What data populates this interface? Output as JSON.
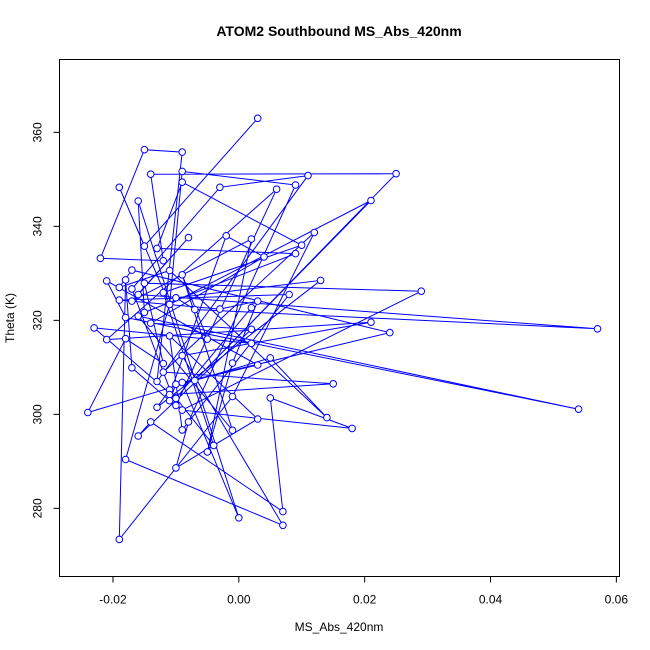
{
  "chart_data": {
    "type": "line",
    "title": "ATOM2 Southbound MS_Abs_420nm",
    "xlabel": "MS_Abs_420nm",
    "ylabel": "Theta (K)",
    "xlim": [
      -0.0285,
      0.0605
    ],
    "ylim": [
      265.5,
      375.5
    ],
    "xticks": [
      -0.02,
      0.0,
      0.02,
      0.04,
      0.06
    ],
    "xtick_labels": [
      "-0.02",
      "0.00",
      "0.02",
      "0.04",
      "0.06"
    ],
    "yticks": [
      280,
      300,
      320,
      340,
      360
    ],
    "ytick_labels": [
      "280",
      "300",
      "320",
      "340",
      "360"
    ],
    "grid": false,
    "legend": "none",
    "marker": "open-circle",
    "series": [
      {
        "color": "#0000ff",
        "points": [
          [
            0.003,
            363.0
          ],
          [
            -0.015,
            335.8
          ],
          [
            -0.019,
            348.3
          ],
          [
            -0.011,
            323.4
          ],
          [
            0.021,
            345.5
          ],
          [
            -0.007,
            307.2
          ],
          [
            0.025,
            351.2
          ],
          [
            -0.014,
            351.1
          ],
          [
            -0.012,
            332.7
          ],
          [
            -0.022,
            333.2
          ],
          [
            -0.015,
            356.3
          ],
          [
            -0.009,
            355.8
          ],
          [
            -0.013,
            307.0
          ],
          [
            0.011,
            350.8
          ],
          [
            -0.003,
            348.3
          ],
          [
            -0.017,
            326.7
          ],
          [
            -0.01,
            301.9
          ],
          [
            0.006,
            347.9
          ],
          [
            -0.021,
            315.9
          ],
          [
            0.021,
            319.6
          ],
          [
            -0.009,
            312.5
          ],
          [
            0.007,
            276.4
          ],
          [
            -0.018,
            290.4
          ],
          [
            -0.011,
            323.4
          ],
          [
            -0.009,
            351.7
          ],
          [
            0.009,
            348.8
          ],
          [
            -0.008,
            298.4
          ],
          [
            -0.01,
            288.6
          ],
          [
            0.003,
            299.0
          ],
          [
            -0.011,
            316.7
          ],
          [
            -0.009,
            296.7
          ],
          [
            0.008,
            325.5
          ],
          [
            -0.019,
            324.3
          ],
          [
            -0.003,
            322.4
          ],
          [
            0.003,
            324.1
          ],
          [
            -0.001,
            310.9
          ],
          [
            -0.005,
            292.0
          ],
          [
            0.002,
            337.3
          ],
          [
            -0.017,
            324.1
          ],
          [
            -0.008,
            337.6
          ],
          [
            -0.016,
            325.5
          ],
          [
            0.057,
            318.2
          ],
          [
            -0.007,
            322.3
          ],
          [
            -0.01,
            324.8
          ],
          [
            0.013,
            328.5
          ],
          [
            -0.013,
            301.5
          ],
          [
            -0.011,
            305.2
          ],
          [
            -0.004,
            293.4
          ],
          [
            -0.012,
            325.9
          ],
          [
            0.01,
            336.0
          ],
          [
            -0.009,
            349.4
          ],
          [
            -0.013,
            335.3
          ],
          [
            0.009,
            334.2
          ],
          [
            -0.015,
            321.7
          ],
          [
            -0.016,
            345.4
          ],
          [
            0.0,
            278.0
          ],
          [
            -0.009,
            306.8
          ],
          [
            0.024,
            317.4
          ],
          [
            -0.017,
            330.7
          ],
          [
            -0.019,
            327.0
          ],
          [
            -0.011,
            330.6
          ],
          [
            0.014,
            299.3
          ],
          [
            0.005,
            312.0
          ],
          [
            -0.024,
            300.4
          ],
          [
            -0.018,
            316.1
          ],
          [
            -0.012,
            310.8
          ],
          [
            -0.015,
            327.9
          ],
          [
            0.029,
            326.2
          ],
          [
            -0.009,
            300.9
          ],
          [
            0.018,
            297.0
          ],
          [
            0.005,
            303.5
          ],
          [
            0.007,
            279.3
          ],
          [
            -0.014,
            298.4
          ],
          [
            -0.016,
            295.4
          ],
          [
            0.002,
            318.1
          ],
          [
            -0.014,
            319.4
          ],
          [
            0.004,
            333.5
          ],
          [
            -0.002,
            338.0
          ],
          [
            -0.011,
            304.2
          ],
          [
            0.015,
            306.5
          ],
          [
            -0.012,
            309.0
          ],
          [
            0.012,
            338.7
          ],
          [
            -0.001,
            303.8
          ],
          [
            -0.019,
            273.4
          ],
          [
            -0.018,
            328.6
          ],
          [
            -0.017,
            309.9
          ],
          [
            -0.011,
            302.9
          ],
          [
            -0.01,
            306.4
          ],
          [
            0.003,
            310.5
          ],
          [
            -0.021,
            328.4
          ],
          [
            -0.018,
            320.6
          ],
          [
            0.054,
            301.1
          ],
          [
            -0.016,
            320.9
          ],
          [
            -0.001,
            296.6
          ],
          [
            -0.009,
            329.7
          ],
          [
            -0.005,
            316.0
          ],
          [
            0.002,
            315.1
          ],
          [
            -0.023,
            318.4
          ],
          [
            -0.01,
            303.4
          ],
          [
            0.002,
            322.7
          ]
        ]
      }
    ]
  }
}
